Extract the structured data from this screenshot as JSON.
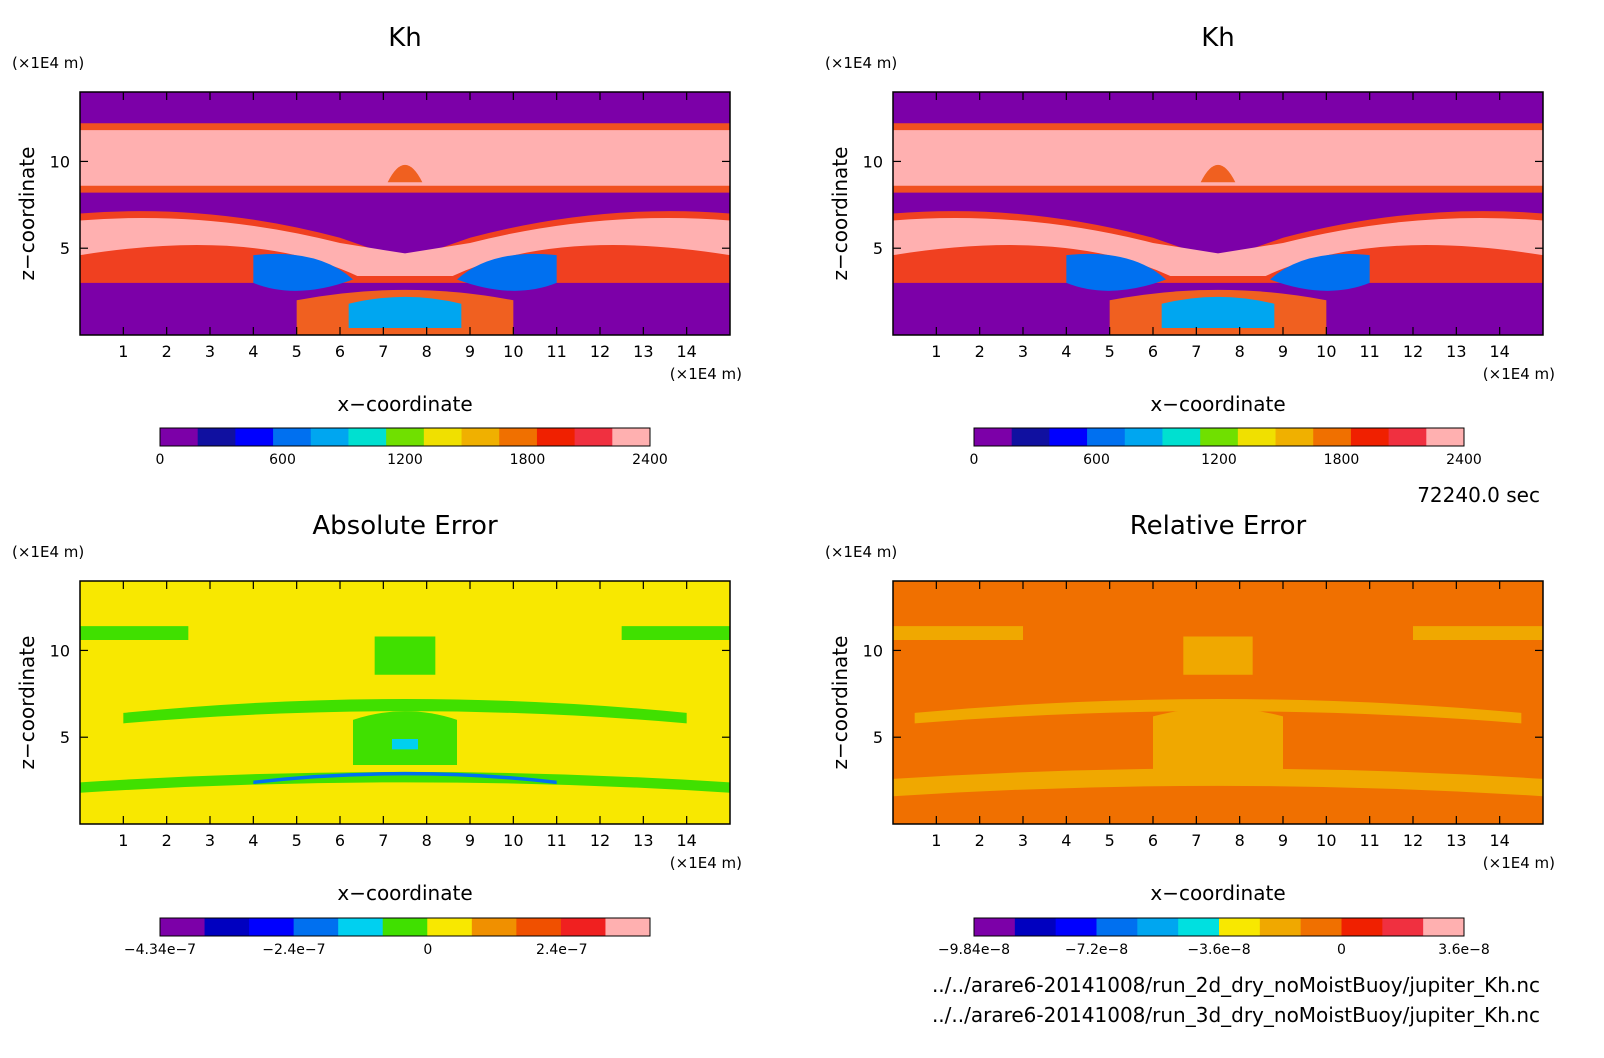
{
  "time_label": "72240.0 sec",
  "files": [
    "../../arare6-20141008/run_2d_dry_noMoistBuoy/jupiter_Kh.nc",
    "../../arare6-20141008/run_3d_dry_noMoistBuoy/jupiter_Kh.nc"
  ],
  "chart_data": [
    {
      "type": "heatmap",
      "title": "Kh",
      "xlabel": "x−coordinate",
      "ylabel": "z−coordinate",
      "x_unit": "(×1E4 m)",
      "y_unit": "(×1E4 m)",
      "xlim": [
        0,
        15
      ],
      "ylim": [
        0,
        14
      ],
      "xticks": [
        "1",
        "2",
        "3",
        "4",
        "5",
        "6",
        "7",
        "8",
        "9",
        "10",
        "11",
        "12",
        "13",
        "14"
      ],
      "yticks": [
        "5",
        "10"
      ],
      "colorbar": {
        "labels": [
          "0",
          "600",
          "1200",
          "1800",
          "2400"
        ],
        "colors": [
          "#7c00a8",
          "#1010a0",
          "#0000ff",
          "#0070f0",
          "#00a6f0",
          "#00e0d0",
          "#70e000",
          "#f0e000",
          "#f0b000",
          "#f07000",
          "#f02000",
          "#f03040",
          "#ffb0b0"
        ]
      },
      "background": "#7c00a8"
    },
    {
      "type": "heatmap",
      "title": "Kh",
      "xlabel": "x−coordinate",
      "ylabel": "z−coordinate",
      "x_unit": "(×1E4 m)",
      "y_unit": "(×1E4 m)",
      "xlim": [
        0,
        15
      ],
      "ylim": [
        0,
        14
      ],
      "xticks": [
        "1",
        "2",
        "3",
        "4",
        "5",
        "6",
        "7",
        "8",
        "9",
        "10",
        "11",
        "12",
        "13",
        "14"
      ],
      "yticks": [
        "5",
        "10"
      ],
      "colorbar": {
        "labels": [
          "0",
          "600",
          "1200",
          "1800",
          "2400"
        ],
        "colors": [
          "#7c00a8",
          "#1010a0",
          "#0000ff",
          "#0070f0",
          "#00a6f0",
          "#00e0d0",
          "#70e000",
          "#f0e000",
          "#f0b000",
          "#f07000",
          "#f02000",
          "#f03040",
          "#ffb0b0"
        ]
      },
      "background": "#7c00a8"
    },
    {
      "type": "heatmap",
      "title": "Absolute Error",
      "xlabel": "x−coordinate",
      "ylabel": "z−coordinate",
      "x_unit": "(×1E4 m)",
      "y_unit": "(×1E4 m)",
      "xlim": [
        0,
        15
      ],
      "ylim": [
        0,
        14
      ],
      "xticks": [
        "1",
        "2",
        "3",
        "4",
        "5",
        "6",
        "7",
        "8",
        "9",
        "10",
        "11",
        "12",
        "13",
        "14"
      ],
      "yticks": [
        "5",
        "10"
      ],
      "colorbar": {
        "labels": [
          "−4.34e−7",
          "−2.4e−7",
          "0",
          "2.4e−7"
        ],
        "colors": [
          "#7c00a8",
          "#0000c0",
          "#0000ff",
          "#0070f0",
          "#00d0f0",
          "#40e000",
          "#f8e800",
          "#f09000",
          "#f05000",
          "#f02020",
          "#ffb0b0"
        ]
      },
      "background": "#f8e800"
    },
    {
      "type": "heatmap",
      "title": "Relative Error",
      "xlabel": "x−coordinate",
      "ylabel": "z−coordinate",
      "x_unit": "(×1E4 m)",
      "y_unit": "(×1E4 m)",
      "xlim": [
        0,
        15
      ],
      "ylim": [
        0,
        14
      ],
      "xticks": [
        "1",
        "2",
        "3",
        "4",
        "5",
        "6",
        "7",
        "8",
        "9",
        "10",
        "11",
        "12",
        "13",
        "14"
      ],
      "yticks": [
        "5",
        "10"
      ],
      "colorbar": {
        "labels": [
          "−9.84e−8",
          "−7.2e−8",
          "−3.6e−8",
          "0",
          "3.6e−8"
        ],
        "colors": [
          "#7c00a8",
          "#0000c0",
          "#0000ff",
          "#0070f0",
          "#00a6f0",
          "#00e0e0",
          "#f8e800",
          "#f0a800",
          "#f07000",
          "#f02000",
          "#f03040",
          "#ffb0b0"
        ]
      },
      "background": "#f07000"
    }
  ]
}
